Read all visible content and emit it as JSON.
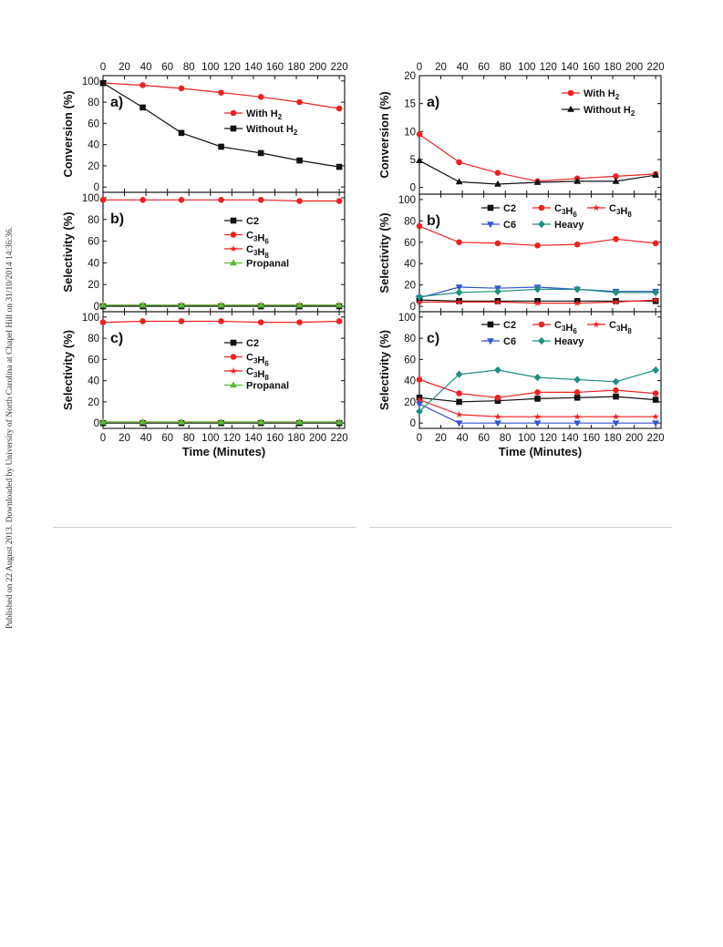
{
  "side_note": "Published on 22 August 2013. Downloaded by University of North Carolina at Chapel Hill on 31/10/2014 14:36:36.",
  "colors": {
    "black": "#111111",
    "red": "#ee2222",
    "blue": "#3355cc",
    "teal": "#1f8f82",
    "green": "#55bb33",
    "rule": "#cfcfc3"
  },
  "chart_data": [
    {
      "type": "line",
      "xlabel": "Time (Minutes)",
      "x_ticks": [
        "0",
        "20",
        "40",
        "60",
        "80",
        "100",
        "120",
        "140",
        "160",
        "180",
        "200",
        "220"
      ],
      "xlim": [
        0,
        225
      ],
      "panels": [
        {
          "label": "a)",
          "ylabel": "Conversion (%)",
          "ylim": [
            -5,
            105
          ],
          "y_ticks": [
            0,
            20,
            40,
            60,
            80,
            100
          ],
          "legend": "right",
          "series": [
            {
              "name": "With H2",
              "color": "red",
              "marker": "circle",
              "x": [
                0,
                37,
                73,
                110,
                147,
                183,
                220
              ],
              "y": [
                98,
                96,
                93,
                89,
                85,
                80,
                74
              ]
            },
            {
              "name": "Without H2",
              "color": "black",
              "marker": "square",
              "x": [
                0,
                37,
                73,
                110,
                147,
                183,
                220
              ],
              "y": [
                98,
                75,
                51,
                38,
                32,
                25,
                19
              ]
            }
          ]
        },
        {
          "label": "b)",
          "ylabel": "Selectivity (%)",
          "ylim": [
            -5,
            105
          ],
          "y_ticks": [
            0,
            20,
            40,
            60,
            80,
            100
          ],
          "legend": "right",
          "series": [
            {
              "name": "C2",
              "color": "black",
              "marker": "square",
              "x": [
                0,
                37,
                73,
                110,
                147,
                183,
                220
              ],
              "y": [
                0,
                0,
                0,
                0,
                0,
                0,
                0
              ]
            },
            {
              "name": "C3H6",
              "color": "red",
              "marker": "circle",
              "x": [
                0,
                37,
                73,
                110,
                147,
                183,
                220
              ],
              "y": [
                98,
                98,
                98,
                98,
                98,
                97,
                97
              ]
            },
            {
              "name": "C3H8",
              "color": "red",
              "marker": "star",
              "x": [
                0,
                37,
                73,
                110,
                147,
                183,
                220
              ],
              "y": [
                1,
                1,
                1,
                1,
                1,
                1,
                1
              ]
            },
            {
              "name": "Propanal",
              "color": "green",
              "marker": "triangle",
              "x": [
                0,
                37,
                73,
                110,
                147,
                183,
                220
              ],
              "y": [
                1,
                1,
                1,
                1,
                1,
                1,
                1
              ]
            }
          ]
        },
        {
          "label": "c)",
          "ylabel": "Selectivity (%)",
          "ylim": [
            -5,
            105
          ],
          "y_ticks": [
            0,
            20,
            40,
            60,
            80,
            100
          ],
          "legend": "right",
          "series": [
            {
              "name": "C2",
              "color": "black",
              "marker": "square",
              "x": [
                0,
                37,
                73,
                110,
                147,
                183,
                220
              ],
              "y": [
                0,
                0,
                0,
                0,
                0,
                0,
                0
              ]
            },
            {
              "name": "C3H6",
              "color": "red",
              "marker": "circle",
              "x": [
                0,
                37,
                73,
                110,
                147,
                183,
                220
              ],
              "y": [
                95,
                96,
                96,
                96,
                95,
                95,
                96
              ]
            },
            {
              "name": "C3H8",
              "color": "red",
              "marker": "star",
              "x": [
                0,
                37,
                73,
                110,
                147,
                183,
                220
              ],
              "y": [
                1,
                1,
                1,
                1,
                1,
                1,
                1
              ]
            },
            {
              "name": "Propanal",
              "color": "green",
              "marker": "triangle",
              "x": [
                0,
                37,
                73,
                110,
                147,
                183,
                220
              ],
              "y": [
                1,
                1,
                1,
                1,
                1,
                1,
                1
              ]
            }
          ]
        }
      ]
    },
    {
      "type": "line",
      "xlabel": "Time (Minutes)",
      "x_ticks": [
        "0",
        "20",
        "40",
        "60",
        "80",
        "100",
        "120",
        "140",
        "160",
        "180",
        "200",
        "220"
      ],
      "xlim": [
        0,
        225
      ],
      "panels": [
        {
          "label": "a)",
          "ylabel": "Conversion (%)",
          "ylim": [
            -1.2,
            20
          ],
          "y_ticks": [
            0,
            5,
            10,
            15,
            20
          ],
          "legend": "right",
          "series": [
            {
              "name": "With H2",
              "color": "red",
              "marker": "circle",
              "x": [
                0,
                37,
                73,
                110,
                147,
                183,
                220
              ],
              "y": [
                9.5,
                4.5,
                2.6,
                1.1,
                1.6,
                2.0,
                2.4
              ]
            },
            {
              "name": "Without H2",
              "color": "black",
              "marker": "triangle",
              "x": [
                0,
                37,
                73,
                110,
                147,
                183,
                220
              ],
              "y": [
                4.8,
                1.0,
                0.6,
                0.9,
                1.1,
                1.1,
                2.2
              ]
            }
          ]
        },
        {
          "label": "b)",
          "ylabel": "Selectivity (%)",
          "ylim": [
            -5,
            105
          ],
          "y_ticks": [
            0,
            20,
            40,
            60,
            80,
            100
          ],
          "legend": "top",
          "series": [
            {
              "name": "C2",
              "color": "black",
              "marker": "square",
              "x": [
                0,
                37,
                73,
                110,
                147,
                183,
                220
              ],
              "y": [
                6,
                5,
                5,
                5,
                5,
                5,
                5
              ]
            },
            {
              "name": "C3H6",
              "color": "red",
              "marker": "circle",
              "x": [
                0,
                37,
                73,
                110,
                147,
                183,
                220
              ],
              "y": [
                75,
                60,
                59,
                57,
                58,
                63,
                59
              ]
            },
            {
              "name": "C3H8",
              "color": "red",
              "marker": "star",
              "x": [
                0,
                37,
                73,
                110,
                147,
                183,
                220
              ],
              "y": [
                4,
                4,
                4,
                3,
                3,
                4,
                6
              ]
            },
            {
              "name": "C6",
              "color": "blue",
              "marker": "triangle-down",
              "x": [
                0,
                37,
                73,
                110,
                147,
                183,
                220
              ],
              "y": [
                8,
                18,
                17,
                18,
                16,
                14,
                14
              ]
            },
            {
              "name": "Heavy",
              "color": "teal",
              "marker": "diamond",
              "x": [
                0,
                37,
                73,
                110,
                147,
                183,
                220
              ],
              "y": [
                9,
                13,
                14,
                16,
                16,
                13,
                13
              ]
            }
          ]
        },
        {
          "label": "c)",
          "ylabel": "Selectivity (%)",
          "ylim": [
            -5,
            105
          ],
          "y_ticks": [
            0,
            20,
            40,
            60,
            80,
            100
          ],
          "legend": "top",
          "series": [
            {
              "name": "C2",
              "color": "black",
              "marker": "square",
              "x": [
                0,
                37,
                73,
                110,
                147,
                183,
                220
              ],
              "y": [
                24,
                20,
                21,
                23,
                24,
                25,
                22
              ]
            },
            {
              "name": "C3H6",
              "color": "red",
              "marker": "circle",
              "x": [
                0,
                37,
                73,
                110,
                147,
                183,
                220
              ],
              "y": [
                41,
                28,
                24,
                29,
                29,
                31,
                28
              ]
            },
            {
              "name": "C3H8",
              "color": "red",
              "marker": "star",
              "x": [
                0,
                37,
                73,
                110,
                147,
                183,
                220
              ],
              "y": [
                22,
                8,
                6,
                6,
                6,
                6,
                6
              ]
            },
            {
              "name": "C6",
              "color": "blue",
              "marker": "triangle-down",
              "x": [
                0,
                37,
                73,
                110,
                147,
                183,
                220
              ],
              "y": [
                18,
                0,
                0,
                0,
                0,
                0,
                0
              ]
            },
            {
              "name": "Heavy",
              "color": "teal",
              "marker": "diamond",
              "x": [
                0,
                37,
                73,
                110,
                147,
                183,
                220
              ],
              "y": [
                11,
                46,
                50,
                43,
                41,
                39,
                50
              ]
            }
          ]
        }
      ]
    }
  ]
}
